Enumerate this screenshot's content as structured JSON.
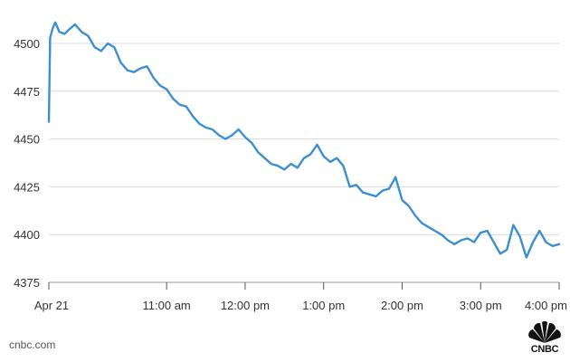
{
  "chart_data": {
    "type": "line",
    "title": "",
    "xlabel": "",
    "ylabel": "",
    "ylim": [
      4375,
      4510
    ],
    "yticks": [
      4375,
      4400,
      4425,
      4450,
      4475,
      4500
    ],
    "x_tick_labels": [
      "Apr 21",
      "11:00 am",
      "12:00 pm",
      "1:00 pm",
      "2:00 pm",
      "3:00 pm",
      "4:00 pm"
    ],
    "grid": true,
    "line_color": "#3d8fd1",
    "series": [
      {
        "x": [
          "09:30",
          "09:31",
          "09:33",
          "09:35",
          "09:38",
          "09:42",
          "09:45",
          "09:50",
          "09:55",
          "10:00",
          "10:05",
          "10:10",
          "10:15",
          "10:20",
          "10:25",
          "10:30",
          "10:35",
          "10:40",
          "10:45",
          "10:50",
          "10:55",
          "11:00",
          "11:05",
          "11:10",
          "11:15",
          "11:20",
          "11:25",
          "11:30",
          "11:35",
          "11:40",
          "11:45",
          "11:50",
          "11:55",
          "12:00",
          "12:05",
          "12:10",
          "12:15",
          "12:20",
          "12:25",
          "12:30",
          "12:35",
          "12:40",
          "12:45",
          "12:50",
          "12:55",
          "13:00",
          "13:05",
          "13:10",
          "13:15",
          "13:20",
          "13:25",
          "13:30",
          "13:35",
          "13:40",
          "13:45",
          "13:50",
          "13:55",
          "14:00",
          "14:05",
          "14:10",
          "14:15",
          "14:20",
          "14:25",
          "14:30",
          "14:35",
          "14:40",
          "14:45",
          "14:50",
          "14:55",
          "15:00",
          "15:05",
          "15:10",
          "15:15",
          "15:20",
          "15:25",
          "15:30",
          "15:35",
          "15:40",
          "15:45",
          "15:50",
          "15:55",
          "16:00"
        ],
        "values": [
          4459,
          4503,
          4508,
          4511,
          4506,
          4505,
          4507,
          4510,
          4506,
          4504,
          4498,
          4496,
          4500,
          4498,
          4490,
          4486,
          4485,
          4487,
          4488,
          4482,
          4478,
          4476,
          4471,
          4468,
          4467,
          4462,
          4458,
          4456,
          4455,
          4452,
          4450,
          4452,
          4455,
          4451,
          4448,
          4443,
          4440,
          4437,
          4436,
          4434,
          4437,
          4435,
          4440,
          4442,
          4447,
          4441,
          4438,
          4440,
          4436,
          4425,
          4426,
          4422,
          4421,
          4420,
          4423,
          4424,
          4430,
          4418,
          4415,
          4410,
          4406,
          4404,
          4402,
          4400,
          4397,
          4395,
          4397,
          4398,
          4396,
          4401,
          4402,
          4396,
          4390,
          4392,
          4405,
          4399,
          4388,
          4396,
          4402,
          4396,
          4394,
          4395
        ]
      }
    ]
  },
  "source_label": "cnbc.com",
  "logo": {
    "icon": "nbc-peacock-icon",
    "text": "CNBC"
  }
}
